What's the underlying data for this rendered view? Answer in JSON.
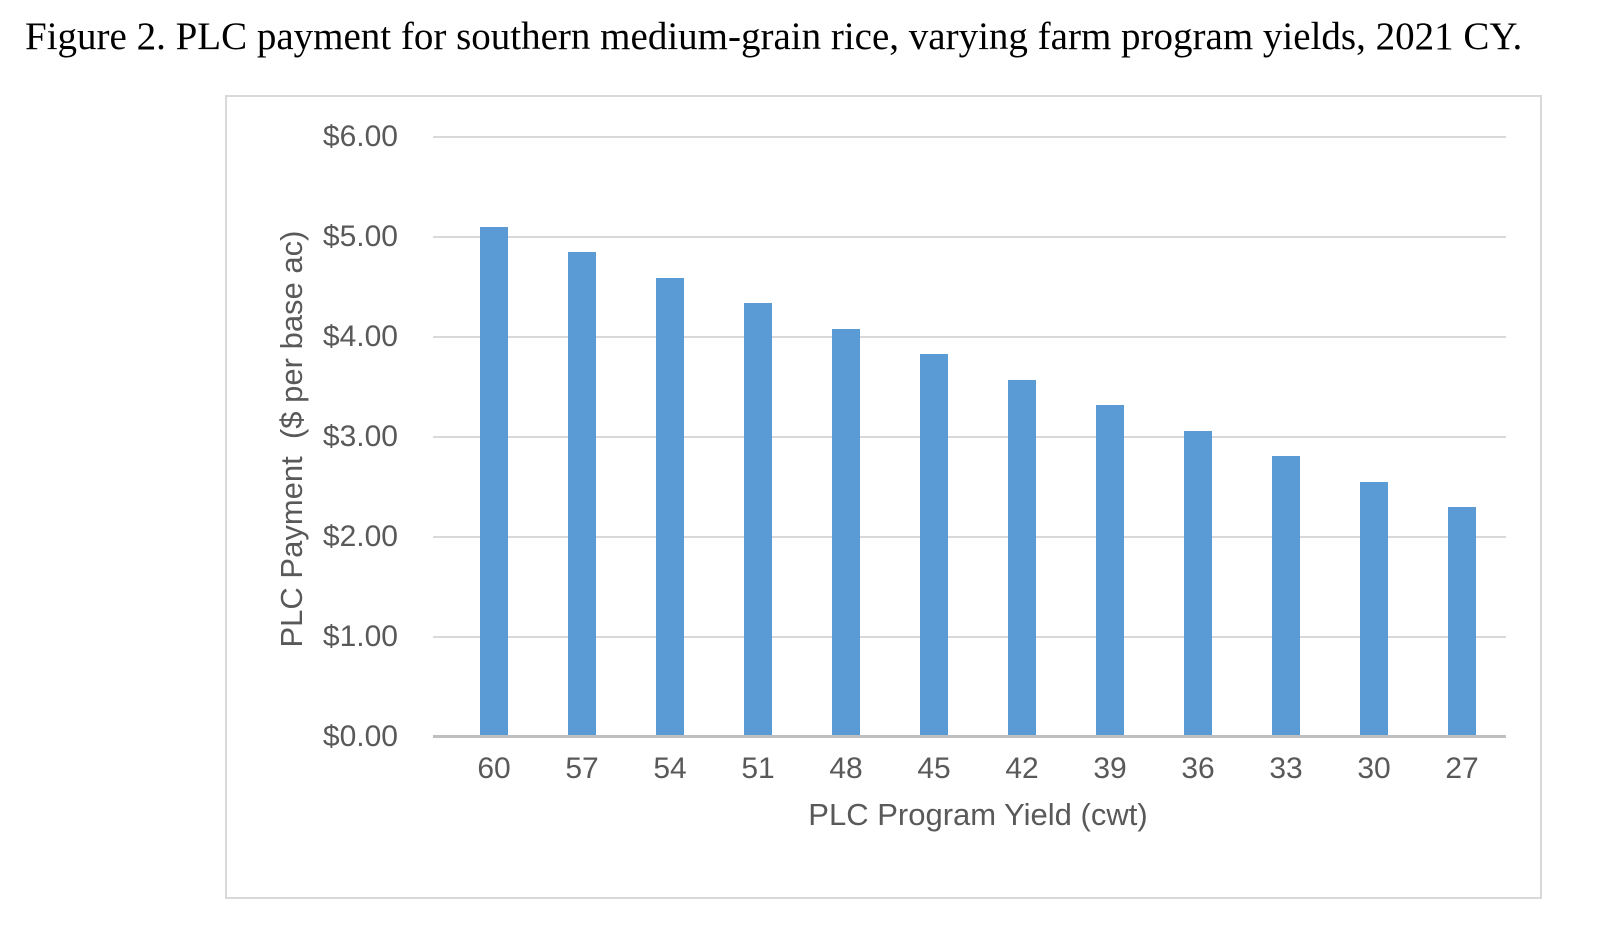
{
  "chart_data": {
    "type": "bar",
    "title": "Figure 2. PLC payment for southern medium-grain rice, varying farm program yields, 2021 CY.",
    "categories": [
      "60",
      "57",
      "54",
      "51",
      "48",
      "45",
      "42",
      "39",
      "36",
      "33",
      "30",
      "27"
    ],
    "values": [
      5.1,
      4.85,
      4.59,
      4.34,
      4.08,
      3.83,
      3.57,
      3.32,
      3.06,
      2.81,
      2.55,
      2.3
    ],
    "xlabel": "PLC Program Yield (cwt)",
    "ylabel": "PLC Payment  ($ per base ac)",
    "ylim": [
      0,
      6
    ],
    "ytick_step": 1,
    "ytick_labels": [
      "$6.00",
      "$5.00",
      "$4.00",
      "$3.00",
      "$2.00",
      "$1.00",
      "$0.00"
    ],
    "grid": true,
    "legend": "none",
    "colors": {
      "bar": "#5B9BD5",
      "gridline": "#D9D9D9",
      "axis_line": "#BFBFBF",
      "axis_text": "#595959",
      "frame_border": "#D9D9D9",
      "caption_text": "#000000"
    }
  }
}
